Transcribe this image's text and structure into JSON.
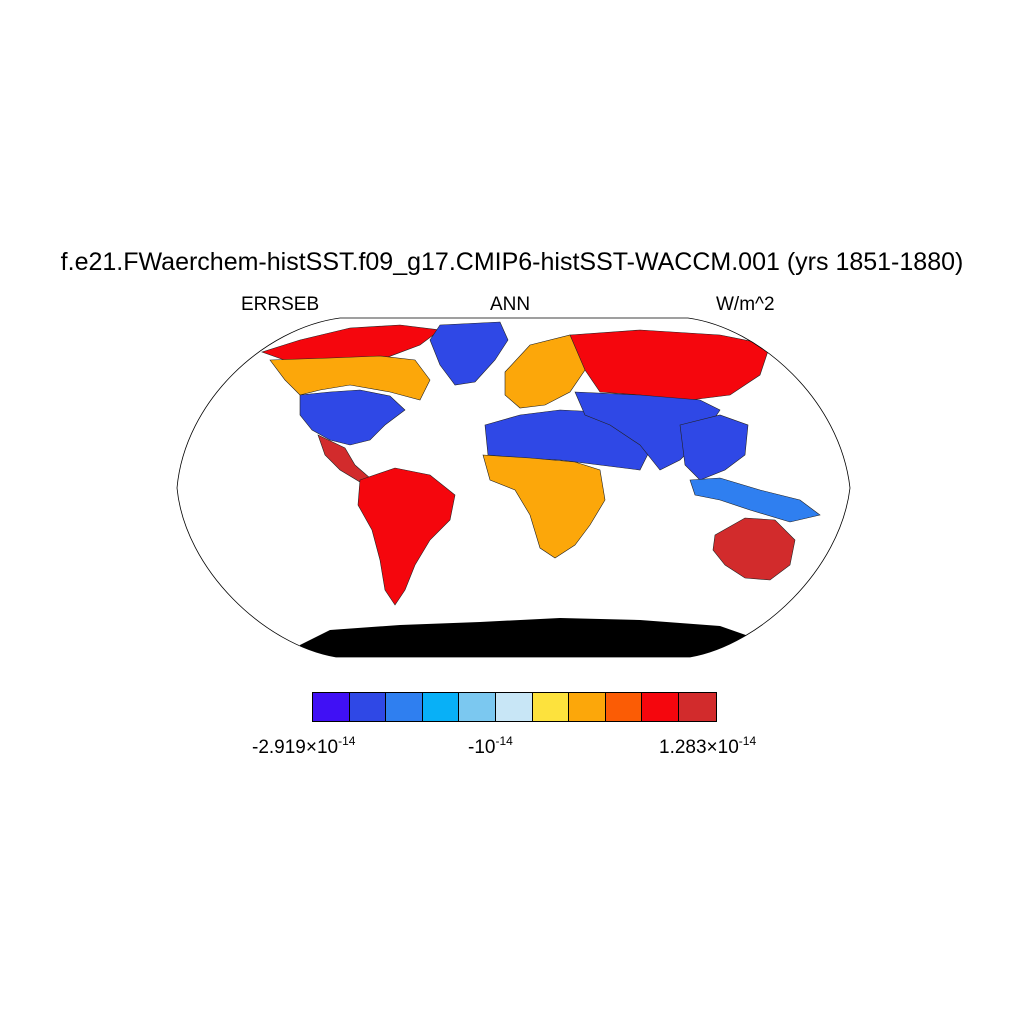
{
  "header": {
    "title": "f.e21.FWaerchem-histSST.f09_g17.CMIP6-histSST-WACCM.001 (yrs 1851-1880)",
    "variable": "ERRSEB",
    "season": "ANN",
    "units": "W/m^2"
  },
  "colorbar": {
    "colors": [
      "#4010f5",
      "#2f48e6",
      "#2f7ff0",
      "#08b0f7",
      "#7bc8f0",
      "#c8e6f6",
      "#fde23d",
      "#fca70a",
      "#fb5c05",
      "#f5060d",
      "#d22b2c"
    ],
    "labels": [
      {
        "mantissa": "-2.919×10",
        "exponent": "-14"
      },
      {
        "mantissa": "-10",
        "exponent": "-14"
      },
      {
        "mantissa": "1.283×10",
        "exponent": "-14"
      }
    ]
  },
  "map": {
    "projection": "Robinson",
    "field": "ERRSEB",
    "regions": [
      {
        "name": "North America - Arctic",
        "color": "#f5060d"
      },
      {
        "name": "Canada",
        "color": "#fca70a"
      },
      {
        "name": "United States",
        "color": "#2f48e6"
      },
      {
        "name": "Greenland",
        "color": "#d22b2c"
      },
      {
        "name": "South America",
        "color": "#2f48e6"
      },
      {
        "name": "Sahara / Arabia",
        "color": "#f5060d"
      },
      {
        "name": "Central & Southern Africa",
        "color": "#2f48e6"
      },
      {
        "name": "Europe",
        "color": "#fca70a"
      },
      {
        "name": "Siberia",
        "color": "#fca70a"
      },
      {
        "name": "Central Asia",
        "color": "#f5060d"
      },
      {
        "name": "Southeast Asia",
        "color": "#2f48e6"
      },
      {
        "name": "Maritime Continent",
        "color": "#2f48e6"
      },
      {
        "name": "Australia",
        "color": "#2f7ff0"
      },
      {
        "name": "Antarctica",
        "color": "#d22b2c"
      }
    ]
  }
}
